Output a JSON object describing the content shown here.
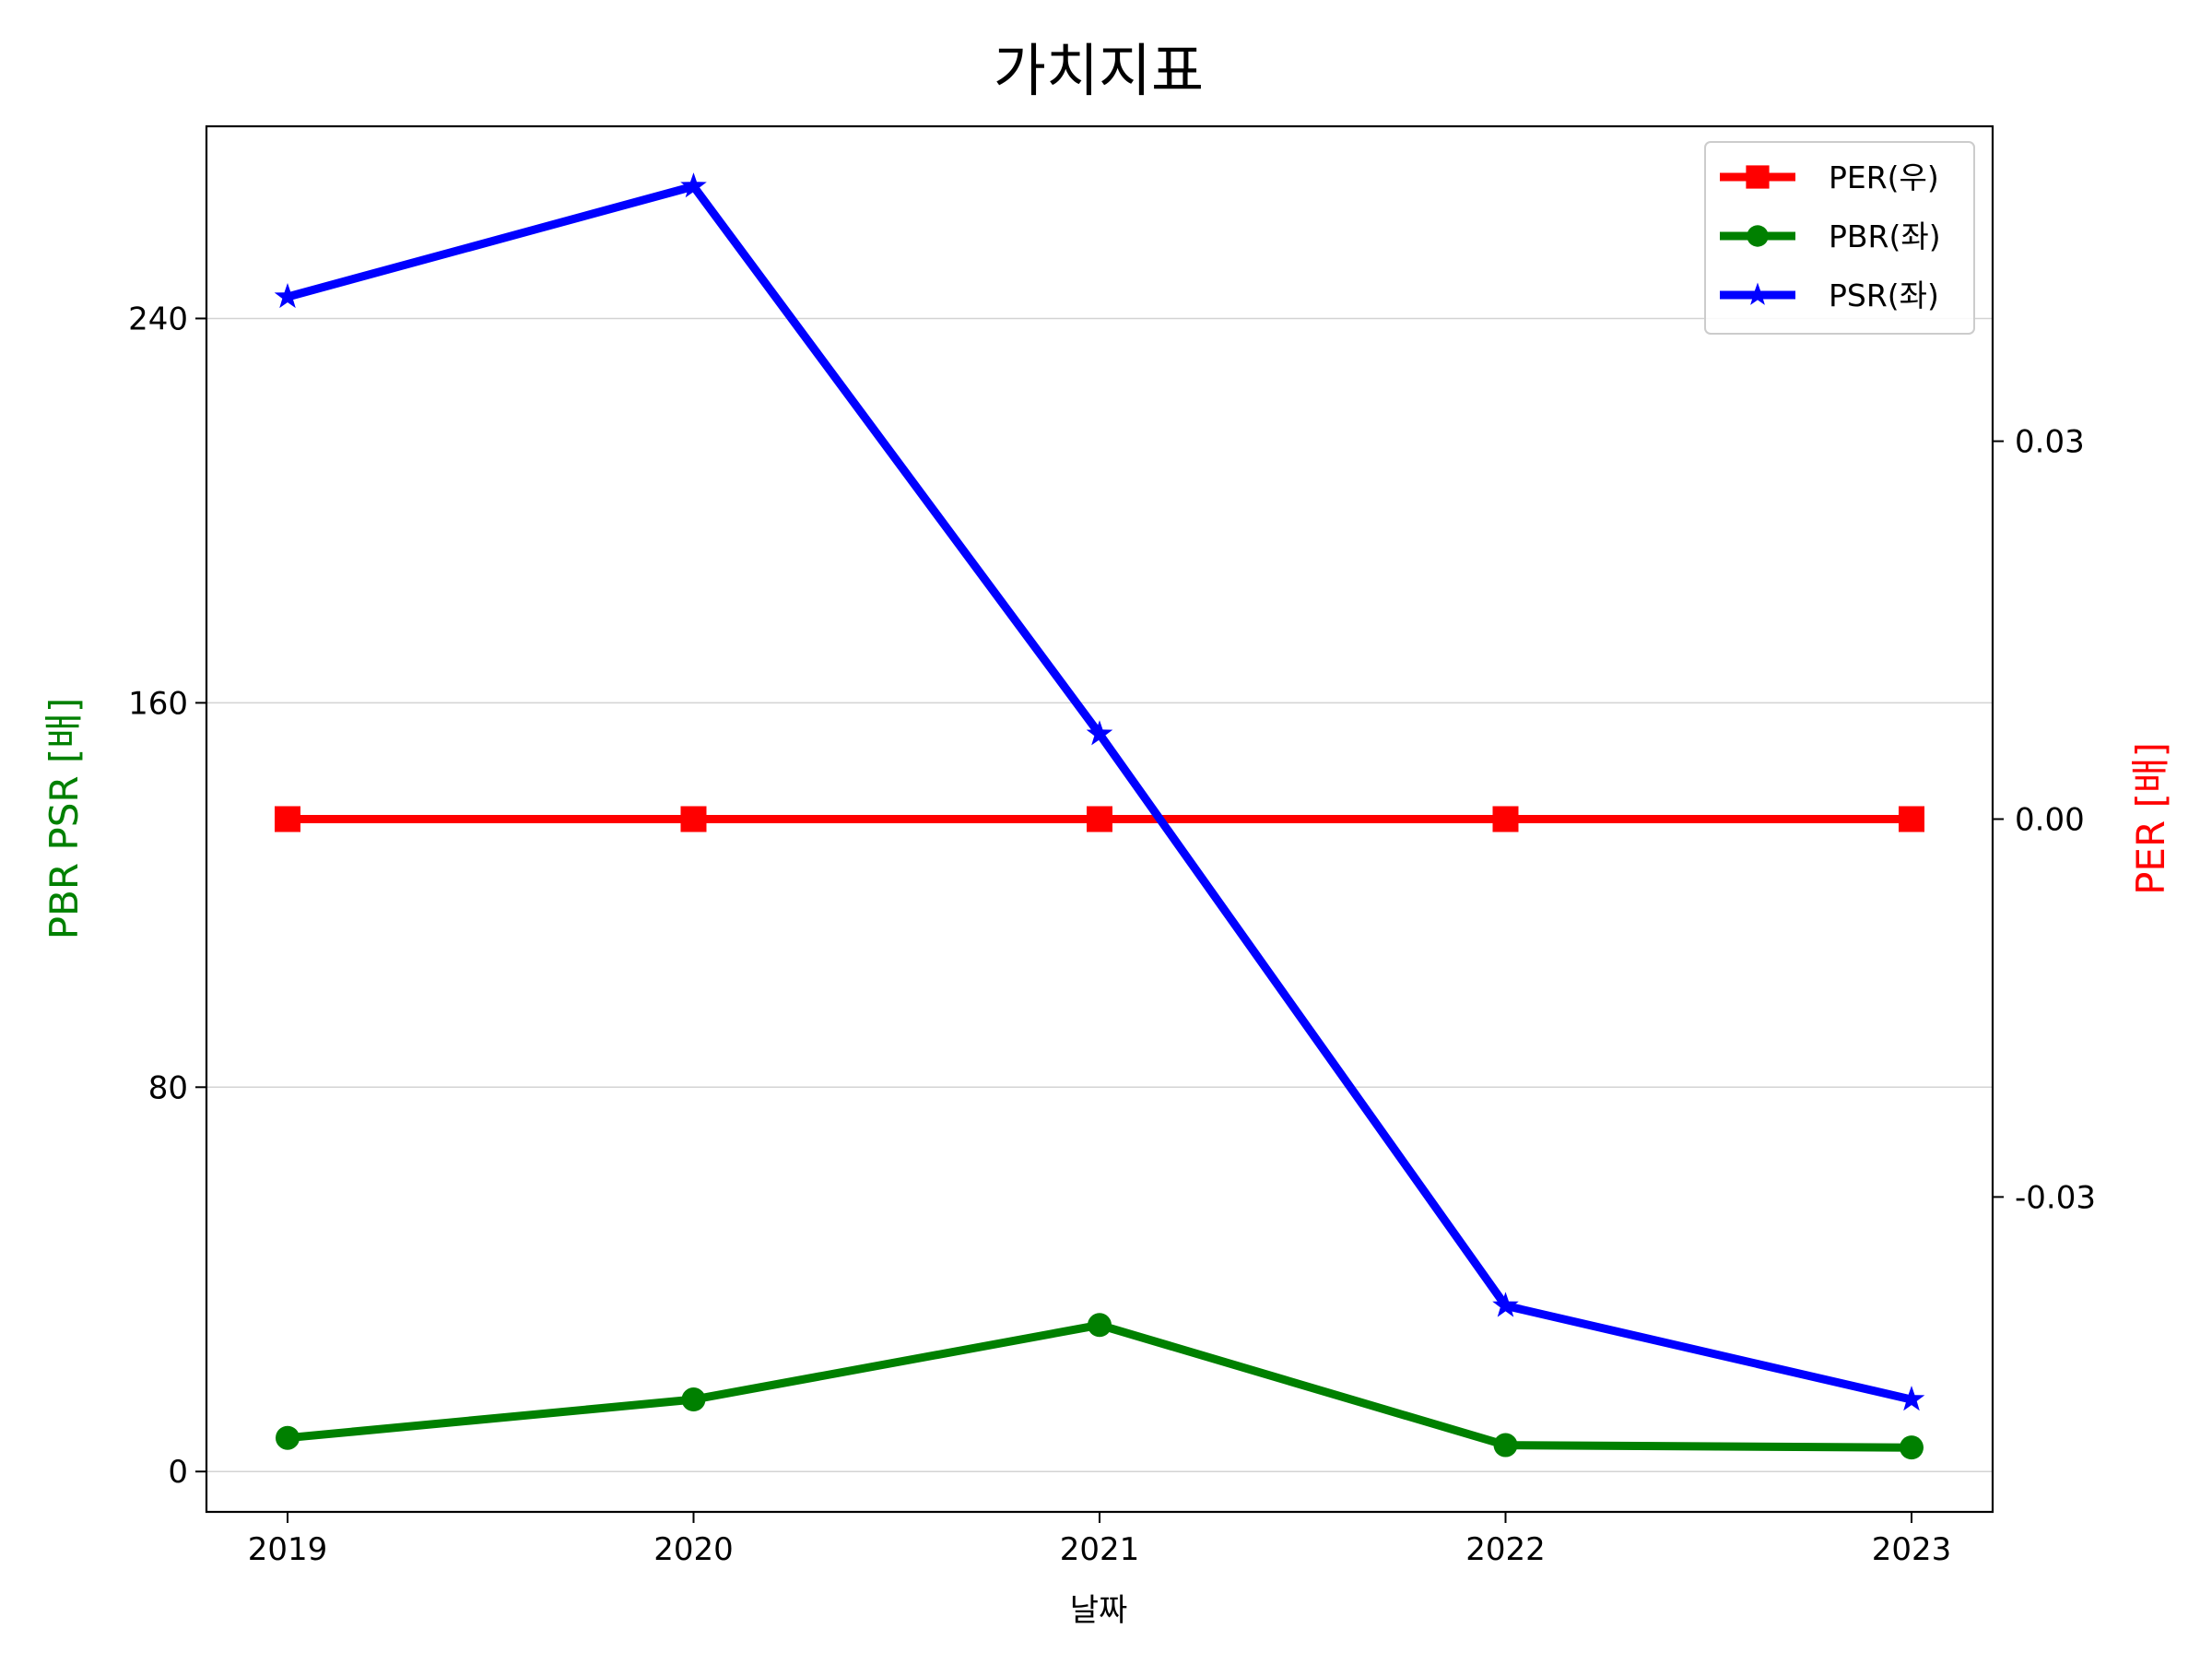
{
  "chart_data": {
    "type": "line",
    "title": "가치지표",
    "xlabel": "날짜",
    "ylabel_left": "PBR PSR [배]",
    "ylabel_right": "PER [배]",
    "categories": [
      "2019",
      "2020",
      "2021",
      "2022",
      "2023"
    ],
    "ylim_left": [
      -8.4,
      280
    ],
    "yticks_left": [
      0,
      80,
      160,
      240
    ],
    "ylim_right": [
      -0.055,
      0.055
    ],
    "yticks_right": [
      {
        "value": 0.03,
        "label": "0.03"
      },
      {
        "value": 0.0,
        "label": "0.00"
      },
      {
        "value": -0.03,
        "label": "-0.03"
      }
    ],
    "grid": "horizontal (left axis)",
    "legend_placement": "top-right",
    "series": [
      {
        "name": "PER(우)",
        "axis": "right",
        "color": "#ff0000",
        "marker": "square",
        "values": [
          0,
          0,
          0,
          0,
          0
        ]
      },
      {
        "name": "PBR(좌)",
        "axis": "left",
        "color": "#008000",
        "marker": "circle",
        "values": [
          7,
          15,
          30.5,
          5.5,
          5
        ]
      },
      {
        "name": "PSR(좌)",
        "axis": "left",
        "color": "#0000ff",
        "marker": "star",
        "values": [
          244.5,
          267.5,
          153.5,
          34.5,
          15
        ]
      }
    ]
  }
}
